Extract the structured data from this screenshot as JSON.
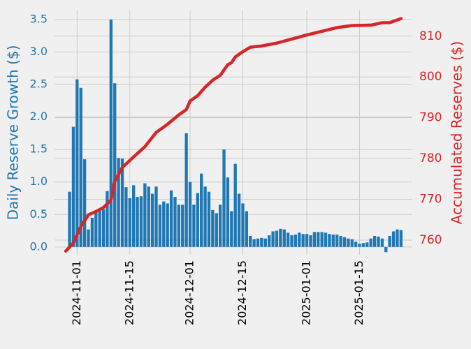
{
  "chart_data": {
    "type": "bar-line",
    "ylabel": "Daily Reserve Growth ($)",
    "y2label": "Accumulated Reserves ($)",
    "xlim": [
      "2024-10-26",
      "2025-01-29"
    ],
    "xticks": [
      "2024-11-01",
      "2024-11-15",
      "2024-12-01",
      "2024-12-15",
      "2025-01-01",
      "2025-01-15"
    ],
    "ylim": [
      -0.12,
      3.64
    ],
    "yticks": [
      {
        "value": 0,
        "label": "0.0"
      },
      {
        "value": 0.5,
        "label": "0.5"
      },
      {
        "value": 1,
        "label": "1.0"
      },
      {
        "value": 1.5,
        "label": "1.5"
      },
      {
        "value": 2,
        "label": "2.0"
      },
      {
        "value": 2.5,
        "label": "2.5"
      },
      {
        "value": 3,
        "label": "3.0"
      },
      {
        "value": 3.5,
        "label": "3.5"
      }
    ],
    "y2lim": [
      756.4,
      816.3
    ],
    "y2ticks": [
      760,
      770,
      780,
      790,
      800,
      810
    ],
    "grid": true,
    "series": [
      {
        "type": "bar",
        "axis": "y",
        "color": "#1f77b4",
        "x": [
          "2024-10-30",
          "2024-10-31",
          "2024-11-01",
          "2024-11-02",
          "2024-11-03",
          "2024-11-04",
          "2024-11-05",
          "2024-11-06",
          "2024-11-07",
          "2024-11-08",
          "2024-11-09",
          "2024-11-10",
          "2024-11-11",
          "2024-11-12",
          "2024-11-13",
          "2024-11-14",
          "2024-11-15",
          "2024-11-16",
          "2024-11-17",
          "2024-11-18",
          "2024-11-19",
          "2024-11-20",
          "2024-11-21",
          "2024-11-22",
          "2024-11-23",
          "2024-11-24",
          "2024-11-25",
          "2024-11-26",
          "2024-11-27",
          "2024-11-28",
          "2024-11-29",
          "2024-11-30",
          "2024-12-01",
          "2024-12-02",
          "2024-12-03",
          "2024-12-04",
          "2024-12-05",
          "2024-12-06",
          "2024-12-07",
          "2024-12-08",
          "2024-12-09",
          "2024-12-10",
          "2024-12-11",
          "2024-12-12",
          "2024-12-13",
          "2024-12-14",
          "2024-12-15",
          "2024-12-16",
          "2024-12-17",
          "2024-12-18",
          "2024-12-19",
          "2024-12-20",
          "2024-12-21",
          "2024-12-22",
          "2024-12-23",
          "2024-12-24",
          "2024-12-25",
          "2024-12-26",
          "2024-12-27",
          "2024-12-28",
          "2024-12-29",
          "2024-12-30",
          "2024-12-31",
          "2025-01-01",
          "2025-01-02",
          "2025-01-03",
          "2025-01-04",
          "2025-01-05",
          "2025-01-06",
          "2025-01-07",
          "2025-01-08",
          "2025-01-09",
          "2025-01-10",
          "2025-01-11",
          "2025-01-12",
          "2025-01-13",
          "2025-01-14",
          "2025-01-15",
          "2025-01-16",
          "2025-01-17",
          "2025-01-18",
          "2025-01-19",
          "2025-01-20",
          "2025-01-21",
          "2025-01-22",
          "2025-01-23",
          "2025-01-24",
          "2025-01-25",
          "2025-01-26"
        ],
        "values": [
          0.85,
          1.85,
          2.58,
          2.45,
          1.35,
          0.27,
          0.45,
          0.55,
          0.58,
          0.58,
          0.86,
          3.5,
          2.52,
          1.37,
          1.36,
          0.92,
          0.75,
          0.95,
          0.77,
          0.78,
          0.98,
          0.93,
          0.82,
          0.93,
          0.65,
          0.7,
          0.67,
          0.87,
          0.77,
          0.65,
          0.65,
          1.75,
          1.0,
          0.65,
          0.83,
          1.13,
          0.93,
          0.85,
          0.57,
          0.52,
          0.65,
          1.5,
          1.07,
          0.55,
          1.28,
          0.82,
          0.67,
          0.55,
          0.17,
          0.12,
          0.13,
          0.14,
          0.13,
          0.18,
          0.24,
          0.25,
          0.28,
          0.27,
          0.22,
          0.18,
          0.19,
          0.22,
          0.2,
          0.2,
          0.18,
          0.23,
          0.23,
          0.23,
          0.22,
          0.2,
          0.19,
          0.19,
          0.17,
          0.15,
          0.13,
          0.12,
          0.08,
          0.05,
          0.06,
          0.07,
          0.13,
          0.17,
          0.16,
          0.13,
          -0.08,
          0.17,
          0.24,
          0.27,
          0.26
        ]
      },
      {
        "type": "line",
        "axis": "y2",
        "color": "#d62728",
        "x": [
          "2024-10-29",
          "2024-10-31",
          "2024-11-02",
          "2024-11-04",
          "2024-11-06",
          "2024-11-08",
          "2024-11-10",
          "2024-11-11",
          "2024-11-13",
          "2024-11-16",
          "2024-11-19",
          "2024-11-22",
          "2024-11-25",
          "2024-11-28",
          "2024-11-30",
          "2024-12-01",
          "2024-12-03",
          "2024-12-05",
          "2024-12-07",
          "2024-12-09",
          "2024-12-11",
          "2024-12-12",
          "2024-12-13",
          "2024-12-15",
          "2024-12-17",
          "2024-12-20",
          "2024-12-24",
          "2024-12-28",
          "2025-01-01",
          "2025-01-05",
          "2025-01-09",
          "2025-01-13",
          "2025-01-18",
          "2025-01-21",
          "2025-01-23",
          "2025-01-26"
        ],
        "values": [
          757.3,
          759.3,
          763.3,
          766.2,
          767.0,
          768.0,
          769.8,
          774.4,
          777.8,
          780.4,
          782.9,
          786.4,
          788.4,
          790.7,
          792.0,
          794.1,
          795.4,
          797.5,
          799.2,
          800.4,
          803.0,
          803.5,
          804.9,
          806.2,
          807.3,
          807.6,
          808.3,
          809.3,
          810.3,
          811.2,
          812.1,
          812.6,
          812.7,
          813.3,
          813.3,
          814.3
        ]
      }
    ]
  }
}
